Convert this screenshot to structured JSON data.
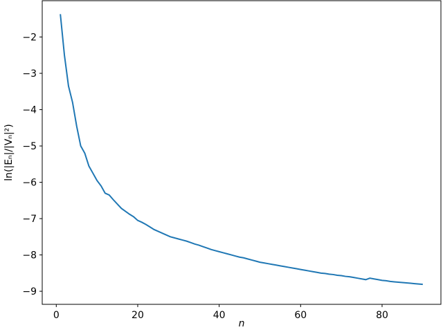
{
  "chart_data": {
    "type": "line",
    "xlabel": "n",
    "ylabel": "ln(|Eₙ|/|Vₙ|²)",
    "x": [
      1,
      2,
      3,
      4,
      5,
      6,
      7,
      8,
      9,
      10,
      11,
      12,
      13,
      14,
      15,
      16,
      17,
      18,
      19,
      20,
      21,
      22,
      23,
      24,
      25,
      26,
      27,
      28,
      29,
      30,
      31,
      32,
      33,
      34,
      35,
      36,
      37,
      38,
      39,
      40,
      41,
      42,
      43,
      44,
      45,
      46,
      47,
      48,
      49,
      50,
      51,
      52,
      53,
      54,
      55,
      56,
      57,
      58,
      59,
      60,
      61,
      62,
      63,
      64,
      65,
      66,
      67,
      68,
      69,
      70,
      71,
      72,
      73,
      74,
      75,
      76,
      77,
      78,
      79,
      80,
      81,
      82,
      83,
      84,
      85,
      86,
      87,
      88,
      89,
      90
    ],
    "series": [
      {
        "color": "#1f77b4",
        "values": [
          -1.37,
          -2.5,
          -3.35,
          -3.8,
          -4.45,
          -5.0,
          -5.2,
          -5.55,
          -5.75,
          -5.95,
          -6.1,
          -6.3,
          -6.35,
          -6.48,
          -6.6,
          -6.72,
          -6.8,
          -6.88,
          -6.95,
          -7.05,
          -7.1,
          -7.16,
          -7.23,
          -7.3,
          -7.35,
          -7.4,
          -7.45,
          -7.5,
          -7.53,
          -7.56,
          -7.59,
          -7.62,
          -7.66,
          -7.7,
          -7.73,
          -7.77,
          -7.81,
          -7.85,
          -7.88,
          -7.91,
          -7.94,
          -7.97,
          -8.0,
          -8.03,
          -8.06,
          -8.08,
          -8.11,
          -8.14,
          -8.17,
          -8.2,
          -8.22,
          -8.24,
          -8.26,
          -8.28,
          -8.3,
          -8.32,
          -8.34,
          -8.36,
          -8.38,
          -8.4,
          -8.42,
          -8.44,
          -8.46,
          -8.48,
          -8.5,
          -8.51,
          -8.53,
          -8.54,
          -8.56,
          -8.57,
          -8.59,
          -8.6,
          -8.62,
          -8.64,
          -8.66,
          -8.68,
          -8.64,
          -8.66,
          -8.68,
          -8.7,
          -8.71,
          -8.73,
          -8.74,
          -8.75,
          -8.76,
          -8.77,
          -8.78,
          -8.79,
          -8.8,
          -8.81
        ]
      }
    ],
    "xlim": [
      -3.45,
      94.45
    ],
    "xticks": [
      0,
      20,
      40,
      60,
      80
    ],
    "ylim": [
      -9.36,
      -1.0
    ],
    "yticks": [
      {
        "value": -9,
        "label": "−9"
      },
      {
        "value": -8,
        "label": "−8"
      },
      {
        "value": -7,
        "label": "−7"
      },
      {
        "value": -6,
        "label": "−6"
      },
      {
        "value": -5,
        "label": "−5"
      },
      {
        "value": -4,
        "label": "−4"
      },
      {
        "value": -3,
        "label": "−3"
      },
      {
        "value": -2,
        "label": "−2"
      }
    ]
  }
}
